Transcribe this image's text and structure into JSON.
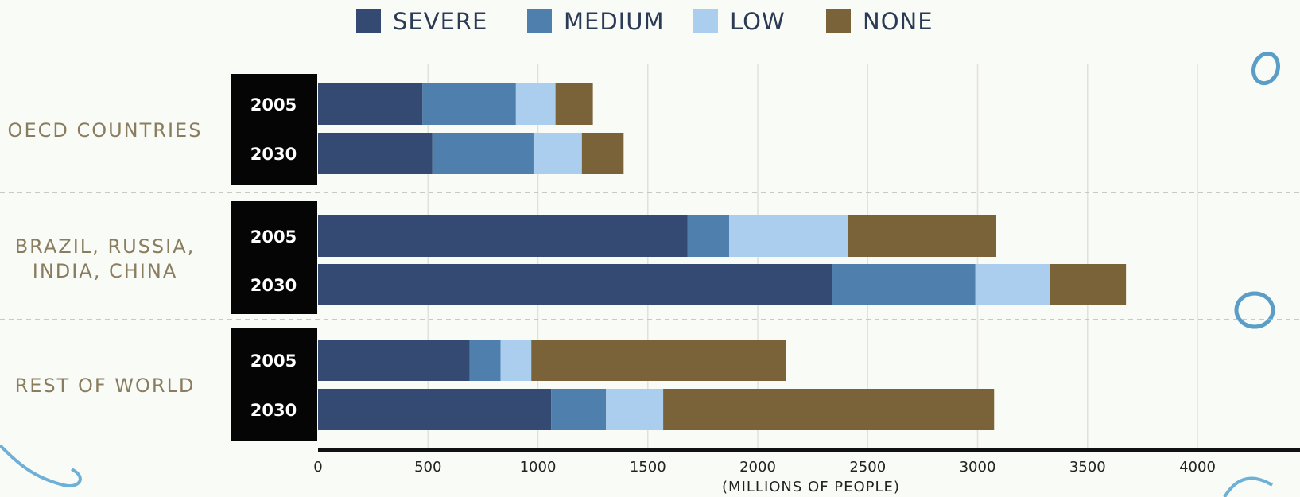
{
  "chart_data": {
    "type": "bar",
    "orientation": "horizontal",
    "stacked": true,
    "legend_position": "top",
    "xlabel": "(MILLIONS OF PEOPLE)",
    "xlim": [
      0,
      4400
    ],
    "x_ticks": [
      0,
      500,
      1000,
      1500,
      2000,
      2500,
      3000,
      3500,
      4000
    ],
    "grid": true,
    "series": [
      {
        "name": "SEVERE",
        "color": "#344a72"
      },
      {
        "name": "MEDIUM",
        "color": "#4f80ad"
      },
      {
        "name": "LOW",
        "color": "#abcdee"
      },
      {
        "name": "NONE",
        "color": "#7a6239"
      }
    ],
    "groups": [
      {
        "label": [
          "OECD COUNTRIES"
        ],
        "bars": [
          {
            "year": "2005",
            "values": [
              475,
              425,
              180,
              170
            ]
          },
          {
            "year": "2030",
            "values": [
              520,
              460,
              220,
              190
            ]
          }
        ]
      },
      {
        "label": [
          "BRAZIL, RUSSIA,",
          "INDIA, CHINA"
        ],
        "bars": [
          {
            "year": "2005",
            "values": [
              1680,
              190,
              540,
              675
            ]
          },
          {
            "year": "2030",
            "values": [
              2340,
              650,
              340,
              345
            ]
          }
        ]
      },
      {
        "label": [
          "REST OF WORLD"
        ],
        "bars": [
          {
            "year": "2005",
            "values": [
              690,
              140,
              140,
              1160
            ]
          },
          {
            "year": "2030",
            "values": [
              1060,
              250,
              260,
              1505
            ]
          }
        ]
      }
    ]
  }
}
